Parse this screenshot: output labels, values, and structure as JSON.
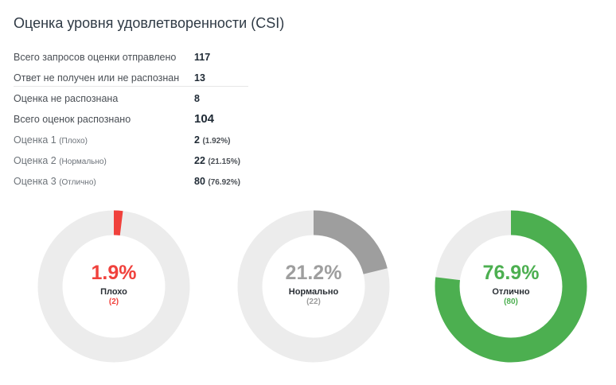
{
  "title": "Оценка уровня удовлетворенности (CSI)",
  "stats": {
    "sent_label": "Всего запросов оценки отправлено",
    "sent_value": "117",
    "no_answer_label": "Ответ не получен или не распознан",
    "no_answer_value": "13",
    "unrecognized_label": "Оценка не распознана",
    "unrecognized_value": "8",
    "recognized_label": "Всего оценок распознано",
    "recognized_value": "104",
    "rating1_label": "Оценка 1",
    "rating1_sub": "(Плохо)",
    "rating1_value": "2",
    "rating1_pct": "(1.92%)",
    "rating2_label": "Оценка 2",
    "rating2_sub": "(Нормально)",
    "rating2_value": "22",
    "rating2_pct": "(21.15%)",
    "rating3_label": "Оценка 3",
    "rating3_sub": "(Отлично)",
    "rating3_value": "80",
    "rating3_pct": "(76.92%)"
  },
  "chart_data": [
    {
      "type": "pie",
      "subtype": "donut",
      "value_percent": 1.92,
      "label_percent": "1.9%",
      "name": "Плохо",
      "count": "(2)",
      "color": "#f0413c",
      "track_color": "#ececec"
    },
    {
      "type": "pie",
      "subtype": "donut",
      "value_percent": 21.15,
      "label_percent": "21.2%",
      "name": "Нормально",
      "count": "(22)",
      "color": "#9e9e9e",
      "track_color": "#ececec"
    },
    {
      "type": "pie",
      "subtype": "donut",
      "value_percent": 76.92,
      "label_percent": "76.9%",
      "name": "Отлично",
      "count": "(80)",
      "color": "#4caf50",
      "track_color": "#ececec"
    }
  ]
}
